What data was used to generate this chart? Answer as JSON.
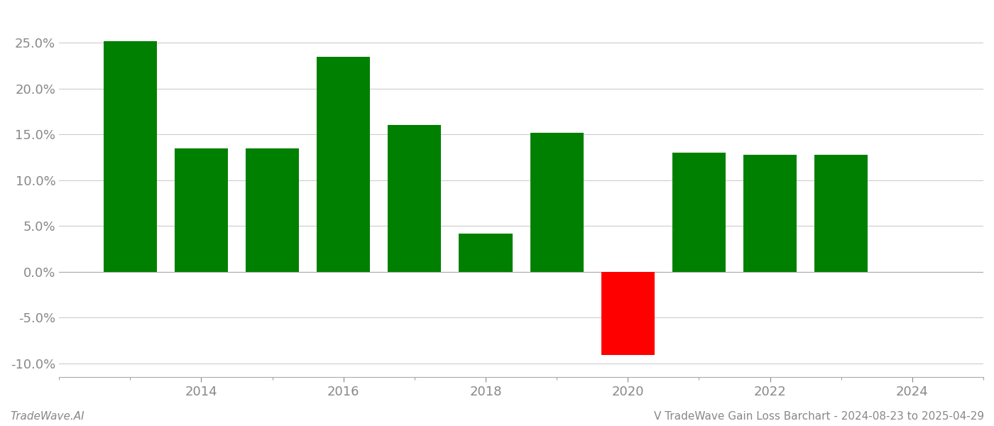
{
  "years": [
    2013,
    2014,
    2015,
    2016,
    2017,
    2018,
    2019,
    2020,
    2021,
    2022,
    2023
  ],
  "values": [
    0.252,
    0.135,
    0.135,
    0.235,
    0.16,
    0.042,
    0.152,
    -0.091,
    0.13,
    0.128,
    0.128
  ],
  "bar_colors": [
    "#008000",
    "#008000",
    "#008000",
    "#008000",
    "#008000",
    "#008000",
    "#008000",
    "#ff0000",
    "#008000",
    "#008000",
    "#008000"
  ],
  "xlim": [
    2012.0,
    2025.0
  ],
  "ylim": [
    -0.115,
    0.285
  ],
  "yticks": [
    -0.1,
    -0.05,
    0.0,
    0.05,
    0.1,
    0.15,
    0.2,
    0.25
  ],
  "xticks": [
    2014,
    2016,
    2018,
    2020,
    2022,
    2024
  ],
  "bar_width": 0.75,
  "background_color": "#ffffff",
  "grid_color": "#cccccc",
  "axis_color": "#aaaaaa",
  "tick_color": "#888888",
  "footer_left": "TradeWave.AI",
  "footer_right": "V TradeWave Gain Loss Barchart - 2024-08-23 to 2025-04-29",
  "footer_fontsize": 11,
  "tick_fontsize": 13
}
